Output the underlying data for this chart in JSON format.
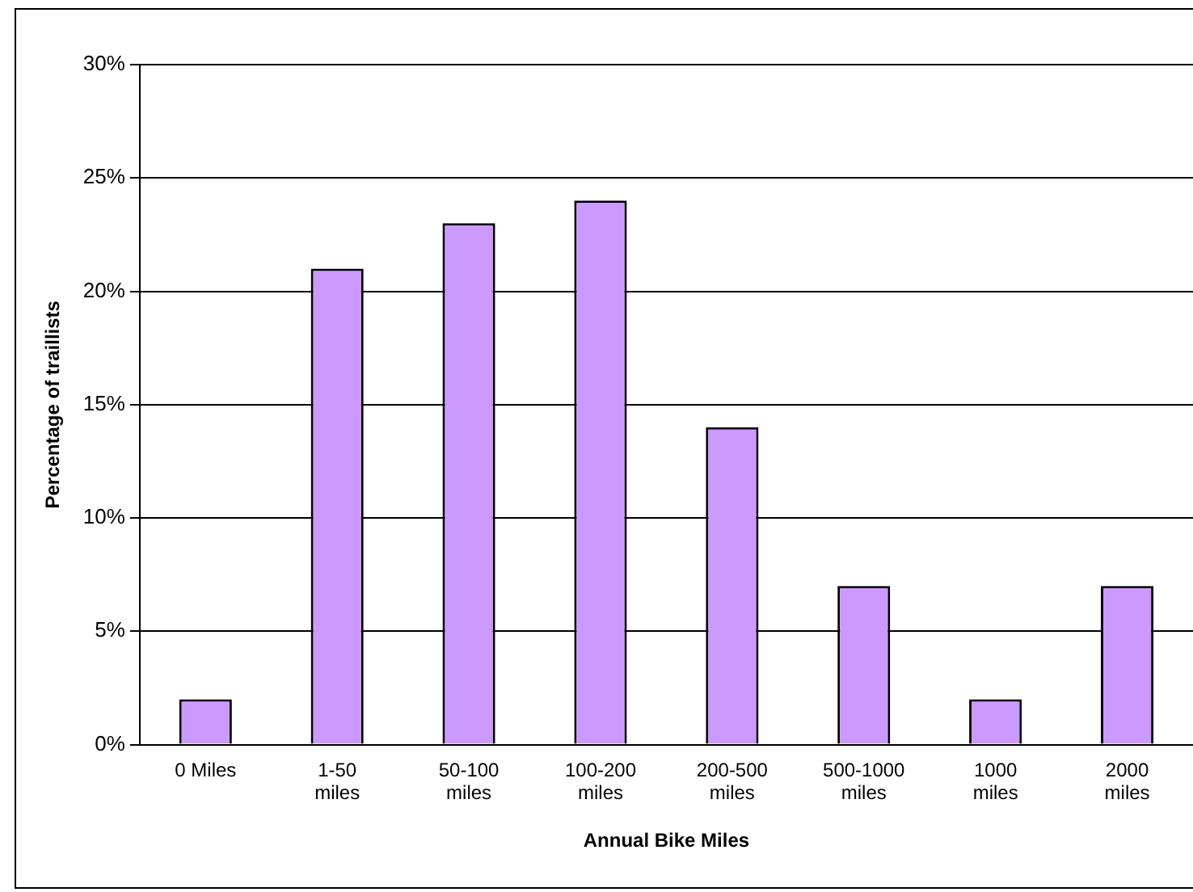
{
  "chart_data": {
    "type": "bar",
    "xlabel": "Annual Bike Miles",
    "ylabel": "Percentage of traillists",
    "categories": [
      "0 Miles",
      "1-50\nmiles",
      "50-100\nmiles",
      "100-200\nmiles",
      "200-500\nmiles",
      "500-1000\nmiles",
      "1000\nmiles",
      "2000\nmiles"
    ],
    "values": [
      2,
      21,
      23,
      24,
      14,
      7,
      2,
      7
    ],
    "color": "#cc99ff",
    "ylim": [
      0,
      30
    ],
    "yticks": [
      {
        "value": 0,
        "label": "0%"
      },
      {
        "value": 5,
        "label": "5%"
      },
      {
        "value": 10,
        "label": "10%"
      },
      {
        "value": 15,
        "label": "15%"
      },
      {
        "value": 20,
        "label": "20%"
      },
      {
        "value": 25,
        "label": "25%"
      },
      {
        "value": 30,
        "label": "30%"
      }
    ],
    "grid": "y",
    "legend": false
  }
}
